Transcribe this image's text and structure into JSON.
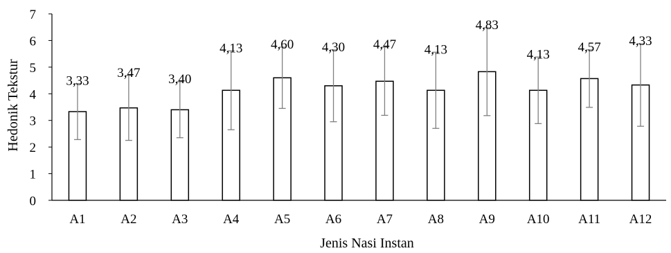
{
  "chart_data": {
    "type": "bar",
    "title": "",
    "xlabel": "Jenis Nasi Instan",
    "ylabel": "Hedonik Tekstur",
    "ylim": [
      0,
      7
    ],
    "yticks": [
      0,
      1,
      2,
      3,
      4,
      5,
      6,
      7
    ],
    "grid": false,
    "categories": [
      "A1",
      "A2",
      "A3",
      "A4",
      "A5",
      "A6",
      "A7",
      "A8",
      "A9",
      "A10",
      "A11",
      "A12"
    ],
    "values": [
      3.33,
      3.47,
      3.4,
      4.13,
      4.6,
      4.3,
      4.47,
      4.13,
      4.83,
      4.13,
      4.57,
      4.33
    ],
    "value_labels": [
      "3,33",
      "3,47",
      "3,40",
      "4,13",
      "4,60",
      "4,30",
      "4,47",
      "4,13",
      "4,83",
      "4,13",
      "4,57",
      "4,33"
    ],
    "error": [
      1.05,
      1.22,
      1.05,
      1.48,
      1.15,
      1.35,
      1.28,
      1.43,
      1.65,
      1.25,
      1.08,
      1.55
    ],
    "bar_color": "#ffffff",
    "bar_edge_color": "#000000",
    "error_bar_color": "#808080"
  }
}
